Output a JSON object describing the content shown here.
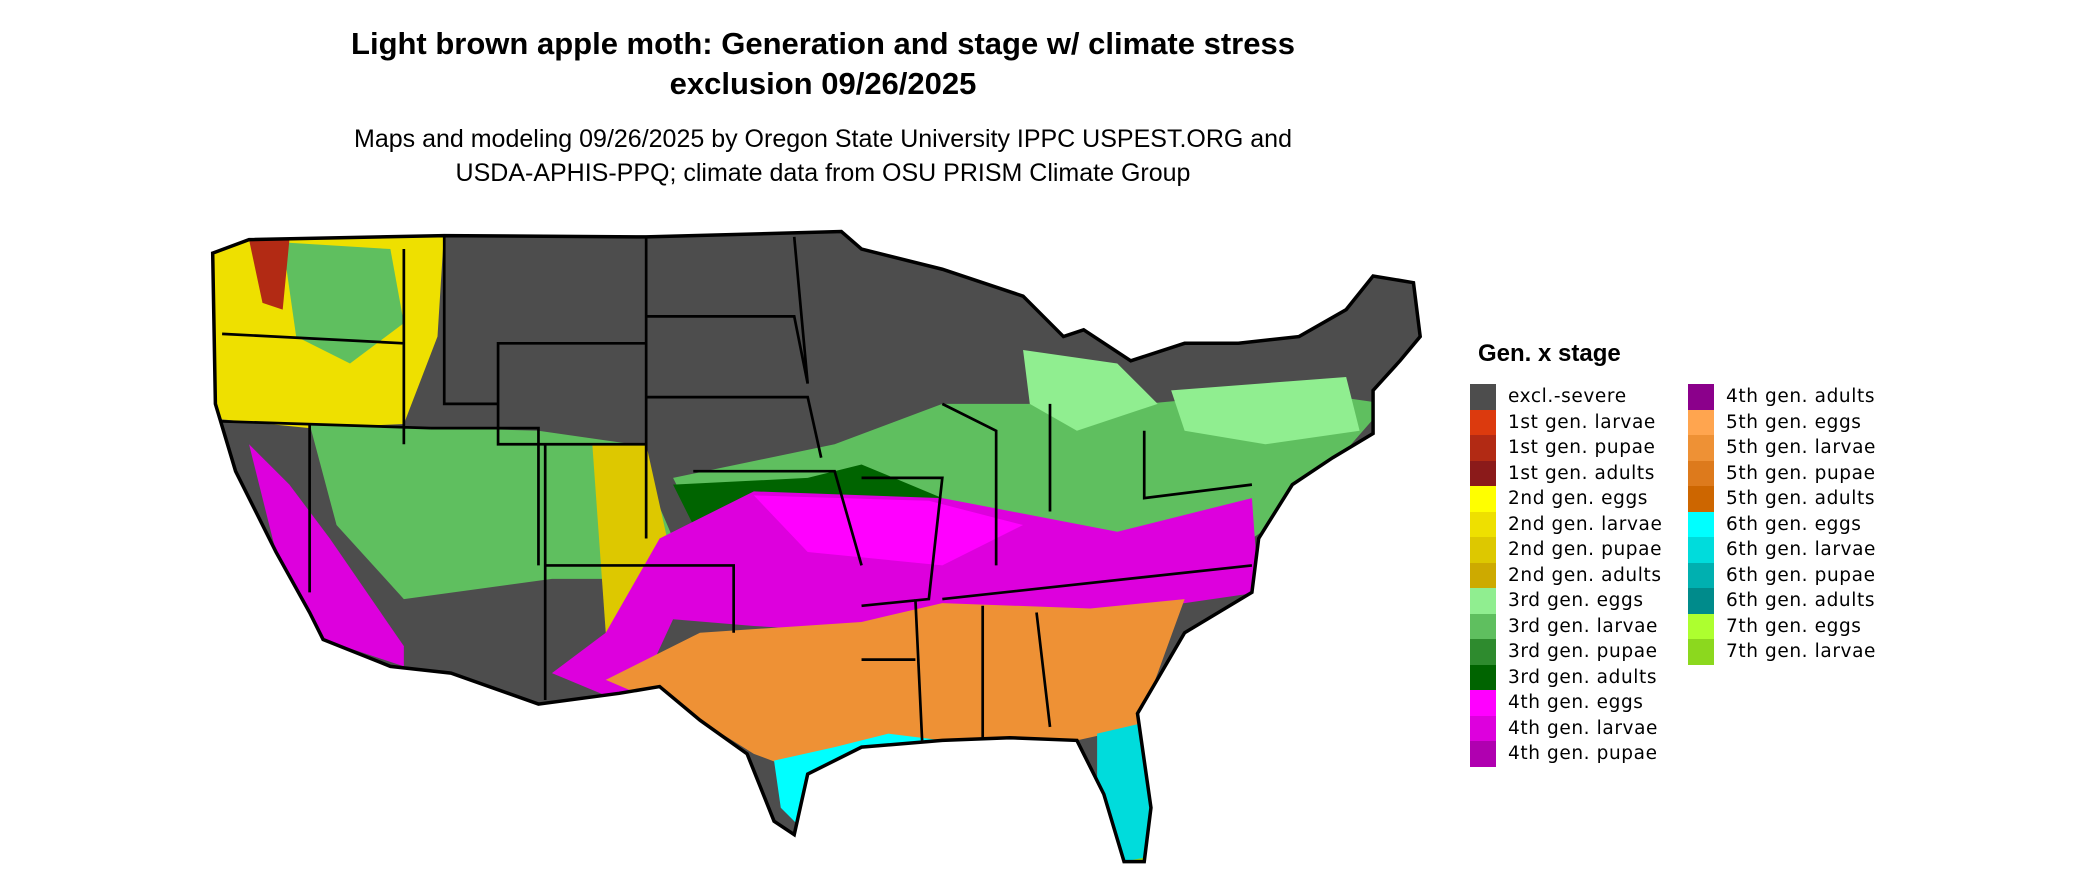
{
  "title": "Light brown apple moth: Generation and stage w/ climate stress",
  "title_line2": "exclusion 09/26/2025",
  "subtitle_line1": "Maps and modeling 09/26/2025 by Oregon State University IPPC USPEST.ORG and",
  "subtitle_line2": "USDA-APHIS-PPQ; climate data from OSU PRISM Climate Group",
  "chart_data": {
    "type": "map",
    "region": "Contiguous United States",
    "legend_title": "Gen. x stage",
    "legend_placement": "right",
    "legend": [
      {
        "label": "excl.-severe",
        "color": "#4d4d4d"
      },
      {
        "label": "1st gen. larvae",
        "color": "#dc3a0e"
      },
      {
        "label": "1st gen. pupae",
        "color": "#b22a14"
      },
      {
        "label": "1st gen. adults",
        "color": "#8b1a1a"
      },
      {
        "label": "2nd gen. eggs",
        "color": "#ffff00"
      },
      {
        "label": "2nd gen. larvae",
        "color": "#eee000"
      },
      {
        "label": "2nd gen. pupae",
        "color": "#ddc800"
      },
      {
        "label": "2nd gen. adults",
        "color": "#cdaa00"
      },
      {
        "label": "3rd gen. eggs",
        "color": "#90ee90"
      },
      {
        "label": "3rd gen. larvae",
        "color": "#5fbf5f"
      },
      {
        "label": "3rd gen. pupae",
        "color": "#2e8b2e"
      },
      {
        "label": "3rd gen. adults",
        "color": "#006400"
      },
      {
        "label": "4th gen. eggs",
        "color": "#ff00ff"
      },
      {
        "label": "4th gen. larvae",
        "color": "#dd00dd"
      },
      {
        "label": "4th gen. pupae",
        "color": "#b000b0"
      },
      {
        "label": "4th gen. adults",
        "color": "#8b008b"
      },
      {
        "label": "5th gen. eggs",
        "color": "#ffa54f"
      },
      {
        "label": "5th gen. larvae",
        "color": "#ee9135"
      },
      {
        "label": "5th gen. pupae",
        "color": "#dd7a1c"
      },
      {
        "label": "5th gen. adults",
        "color": "#cd6600"
      },
      {
        "label": "6th gen. eggs",
        "color": "#00ffff"
      },
      {
        "label": "6th gen. larvae",
        "color": "#00dcdc"
      },
      {
        "label": "6th gen. pupae",
        "color": "#00b0b0"
      },
      {
        "label": "6th gen. adults",
        "color": "#008b8b"
      },
      {
        "label": "7th gen. eggs",
        "color": "#adff2f"
      },
      {
        "label": "7th gen. larvae",
        "color": "#8cd81e"
      }
    ]
  }
}
